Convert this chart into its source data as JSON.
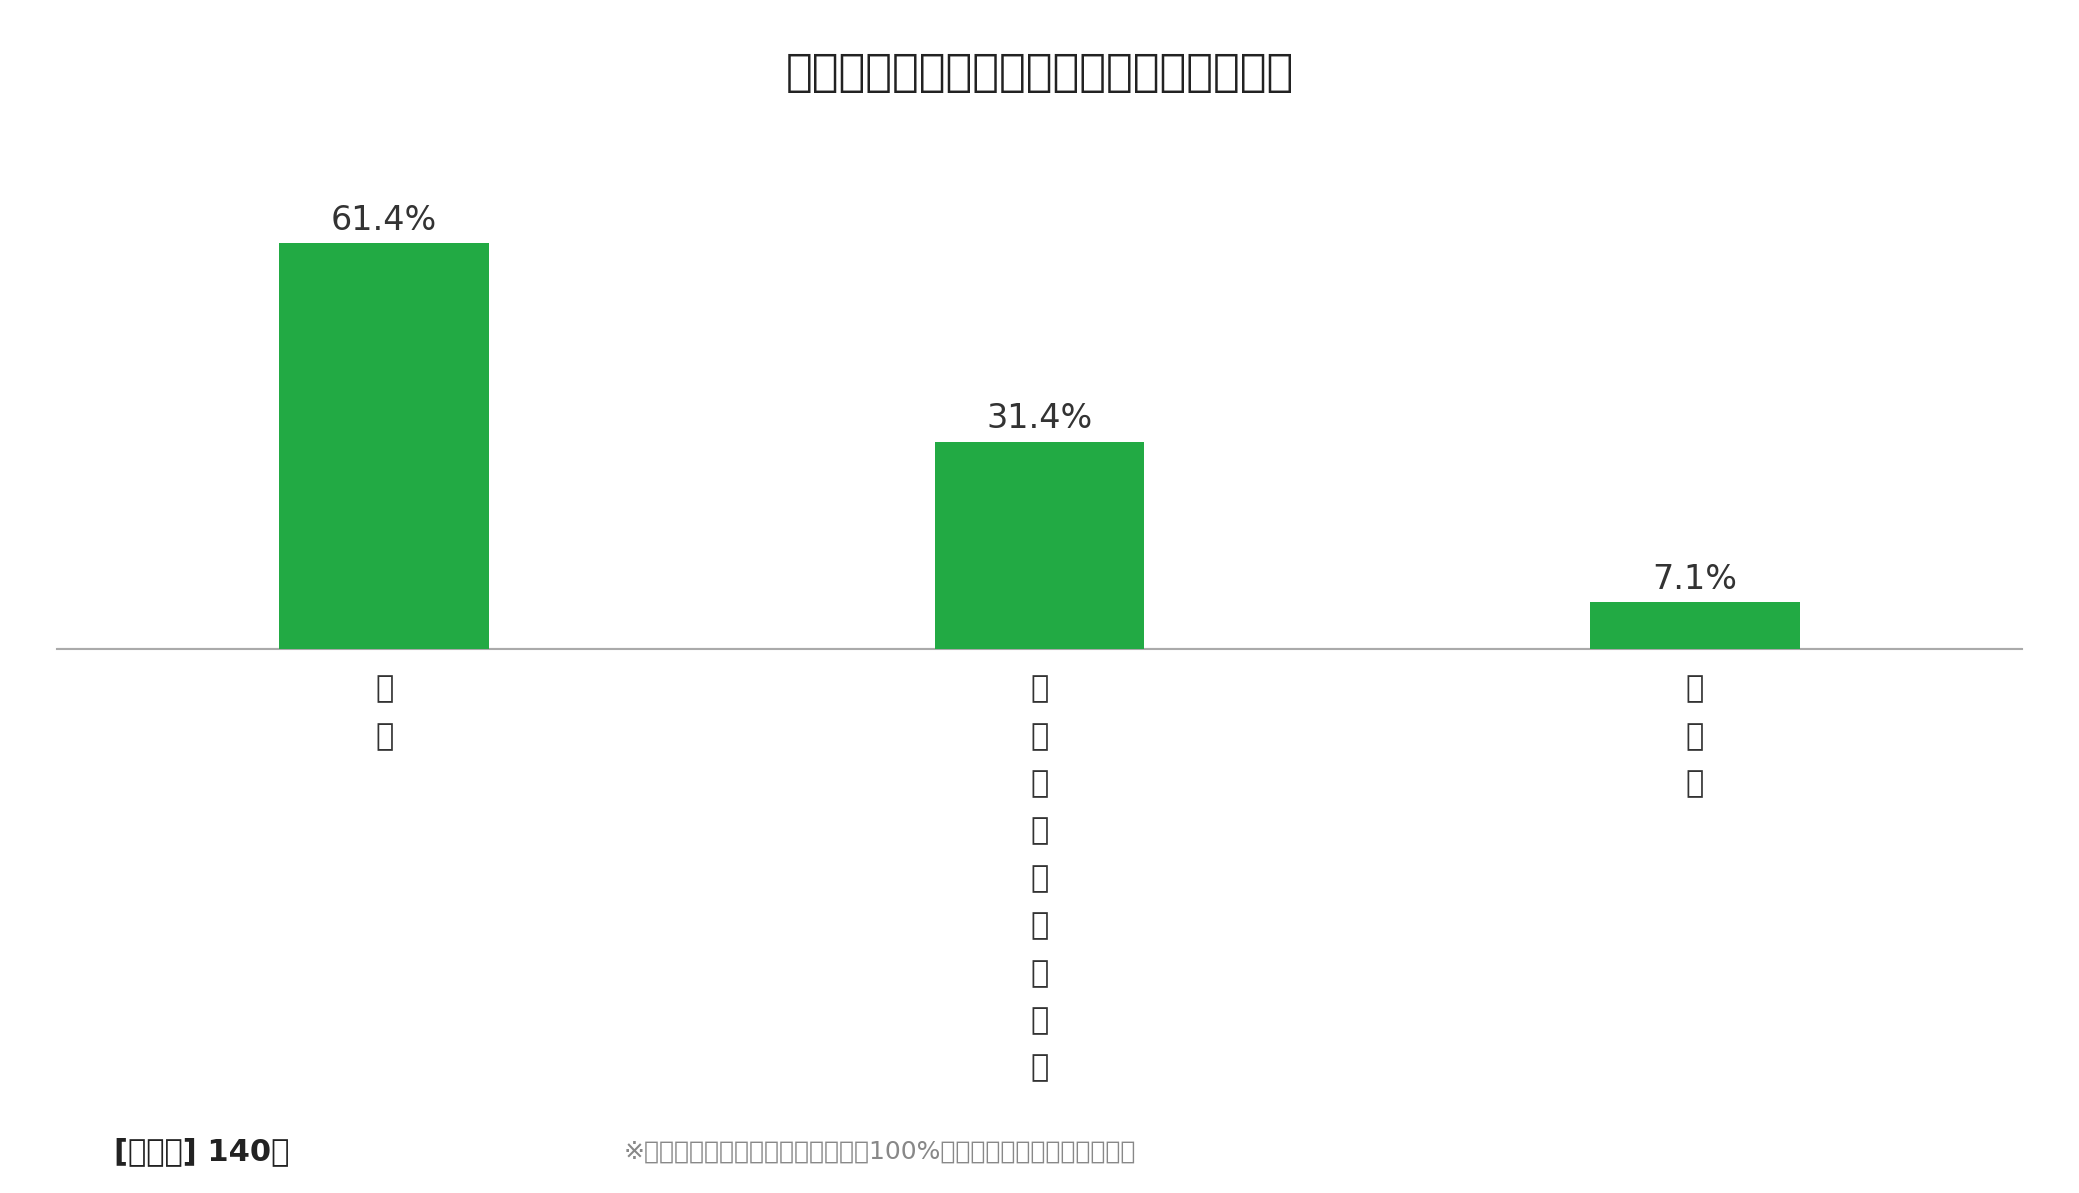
{
  "title": "家族間で共通の趣味が増えたと思いますか",
  "categories": [
    "は\nい",
    "ど\nち\nら\nと\nも\n言\nえ\nな\nい",
    "い\nい\nえ"
  ],
  "values": [
    61.4,
    31.4,
    7.1
  ],
  "labels": [
    "61.4%",
    "31.4%",
    "7.1%"
  ],
  "bar_color": "#22aa44",
  "bg_color": "#ffffff",
  "vote_text": "[投票数] 140票",
  "note_text": "※　端数処理のため、割合の合計は100%にならない場合があります。",
  "title_fontsize": 32,
  "label_fontsize": 24,
  "tick_fontsize": 22,
  "footer_vote_fontsize": 22,
  "footer_note_fontsize": 18,
  "ylim": [
    0,
    78
  ],
  "bar_width": 0.32,
  "x_positions": [
    0.0,
    1.0,
    2.0
  ]
}
